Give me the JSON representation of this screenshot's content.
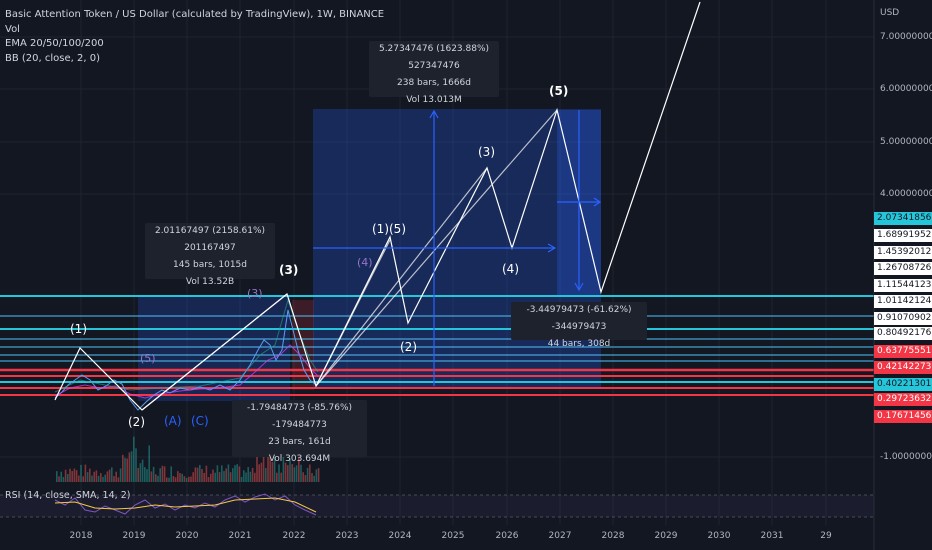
{
  "legend": {
    "title": "Basic Attention Token / US Dollar (calculated by TradingView), 1W, BINANCE",
    "vol": "Vol",
    "ema": "EMA 20/50/100/200",
    "bb": "BB (20, close, 2, 0)"
  },
  "rsi_label": "RSI (14, close, SMA, 14, 2)",
  "currency": "USD",
  "measure_boxes": [
    {
      "line1": "2.01167497 (2158.61%) 201167497",
      "line2": "145 bars, 1015d",
      "line3": "Vol 13.52B"
    },
    {
      "line1": "5.27347476 (1623.88%) 527347476",
      "line2": "238 bars, 1666d",
      "line3": "Vol 13.013M"
    },
    {
      "line1": "-1.79484773 (-85.76%) -179484773",
      "line2": "23 bars, 161d",
      "line3": "Vol 303.694M"
    },
    {
      "line1": "-3.44979473 (-61.62%) -344979473",
      "line2": "44 bars, 308d",
      "line3": ""
    }
  ],
  "wave_labels": [
    "(1)",
    "(2)",
    "(3)",
    "(4)",
    "(5)",
    "(A)",
    "(C)",
    "(1)(5)",
    "(3)",
    "(4)",
    "(2)",
    "(5)",
    "(3)"
  ],
  "price_tags": [
    {
      "value": "2.07341856",
      "color": "#26c6da"
    },
    {
      "value": "1.68991952",
      "color": "#ffffff"
    },
    {
      "value": "1.45392012",
      "color": "#ffffff"
    },
    {
      "value": "1.26708726",
      "color": "#ffffff"
    },
    {
      "value": "1.11544123",
      "color": "#ffffff"
    },
    {
      "value": "1.01142124",
      "color": "#ffffff"
    },
    {
      "value": "0.91070902",
      "color": "#ffffff"
    },
    {
      "value": "0.80492176",
      "color": "#ffffff"
    },
    {
      "value": "0.63775551",
      "color": "#f23645"
    },
    {
      "value": "0.42142273",
      "color": "#f23645"
    },
    {
      "value": "0.40221301",
      "color": "#26c6da"
    },
    {
      "value": "0.29723632",
      "color": "#f23645"
    },
    {
      "value": "0.17671456",
      "color": "#f23645"
    }
  ],
  "chart_data": {
    "type": "line",
    "title": "Basic Attention Token / US Dollar (calculated by TradingView), 1W, BINANCE",
    "x_ticks": [
      "2018",
      "2019",
      "2020",
      "2021",
      "2022",
      "2023",
      "2024",
      "2025",
      "2026",
      "2027",
      "2028",
      "2029",
      "2030",
      "2031",
      "29"
    ],
    "y_ticks": [
      "7.00000000",
      "6.00000000",
      "5.00000000",
      "4.00000000",
      "-1.00000000"
    ],
    "price_levels": [
      2.07341856,
      1.68991952,
      1.45392012,
      1.26708726,
      1.11544123,
      1.01142124,
      0.91070902,
      0.80492176,
      0.63775551,
      0.42142273,
      0.40221301,
      0.29723632,
      0.17671456
    ]
  }
}
